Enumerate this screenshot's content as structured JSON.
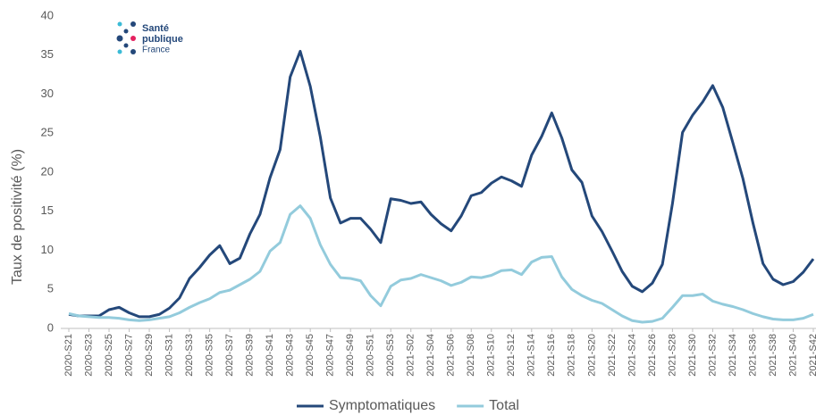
{
  "chart_data": {
    "type": "line",
    "logo": {
      "line1": "Santé",
      "line2": "publique",
      "line3": "France"
    },
    "y_label": "Taux de positivité (%)",
    "categories": [
      "2020-S21",
      null,
      "2020-S23",
      null,
      "2020-S25",
      null,
      "2020-S27",
      null,
      "2020-S29",
      null,
      "2020-S31",
      null,
      "2020-S33",
      null,
      "2020-S35",
      null,
      "2020-S37",
      null,
      "2020-S39",
      null,
      "2020-S41",
      null,
      "2020-S43",
      null,
      "2020-S45",
      null,
      "2020-S47",
      null,
      "2020-S49",
      null,
      "2020-S51",
      null,
      "2020-S53",
      null,
      "2021-S02",
      null,
      "2021-S04",
      null,
      "2021-S06",
      null,
      "2021-S08",
      null,
      "2021-S10",
      null,
      "2021-S12",
      null,
      "2021-S14",
      null,
      "2021-S16",
      null,
      "2021-S18",
      null,
      "2021-S20",
      null,
      "2021-S22",
      null,
      "2021-S24",
      null,
      "2021-S26",
      null,
      "2021-S28",
      null,
      "2021-S30",
      null,
      "2021-S32",
      null,
      "2021-S34",
      null,
      "2021-S36",
      null,
      "2021-S38",
      null,
      "2021-S40",
      null,
      "2021-S42"
    ],
    "series": [
      {
        "name": "Symptomatiques",
        "color": "#24487a",
        "values": [
          1.8,
          1.6,
          1.6,
          1.6,
          2.4,
          2.7,
          2.0,
          1.5,
          1.5,
          1.8,
          2.6,
          3.9,
          6.4,
          7.8,
          9.4,
          10.6,
          8.3,
          9.0,
          12.1,
          14.6,
          19.3,
          22.9,
          32.2,
          35.5,
          31.0,
          24.5,
          16.7,
          13.5,
          14.1,
          14.1,
          12.7,
          11.0,
          16.6,
          16.4,
          16.0,
          16.2,
          14.6,
          13.4,
          12.5,
          14.4,
          17.0,
          17.4,
          18.6,
          19.4,
          18.9,
          18.2,
          22.2,
          24.6,
          27.6,
          24.4,
          20.3,
          18.7,
          14.4,
          12.4,
          9.9,
          7.3,
          5.4,
          4.7,
          5.8,
          8.2,
          16.0,
          25.1,
          27.3,
          29.0,
          31.1,
          28.3,
          23.8,
          19.2,
          13.5,
          8.3,
          6.3,
          5.6,
          6.0,
          7.2,
          8.9
        ]
      },
      {
        "name": "Total",
        "color": "#93cbdc",
        "values": [
          1.9,
          1.6,
          1.5,
          1.4,
          1.4,
          1.3,
          1.1,
          1.0,
          1.1,
          1.3,
          1.5,
          2.0,
          2.7,
          3.3,
          3.8,
          4.6,
          4.9,
          5.6,
          6.3,
          7.3,
          9.9,
          11.0,
          14.6,
          15.7,
          14.1,
          10.7,
          8.2,
          6.5,
          6.4,
          6.1,
          4.2,
          2.9,
          5.4,
          6.2,
          6.4,
          6.9,
          6.5,
          6.1,
          5.5,
          5.9,
          6.6,
          6.5,
          6.8,
          7.4,
          7.5,
          6.9,
          8.5,
          9.1,
          9.2,
          6.6,
          5.0,
          4.2,
          3.6,
          3.2,
          2.4,
          1.6,
          1.0,
          0.8,
          0.9,
          1.3,
          2.7,
          4.2,
          4.2,
          4.4,
          3.5,
          3.1,
          2.8,
          2.4,
          1.9,
          1.5,
          1.2,
          1.1,
          1.1,
          1.3,
          1.8
        ]
      }
    ],
    "ylim": [
      0,
      40
    ],
    "yticks": [
      0,
      5,
      10,
      15,
      20,
      25,
      30,
      35,
      40
    ],
    "grid": false,
    "legend": "bottom"
  }
}
